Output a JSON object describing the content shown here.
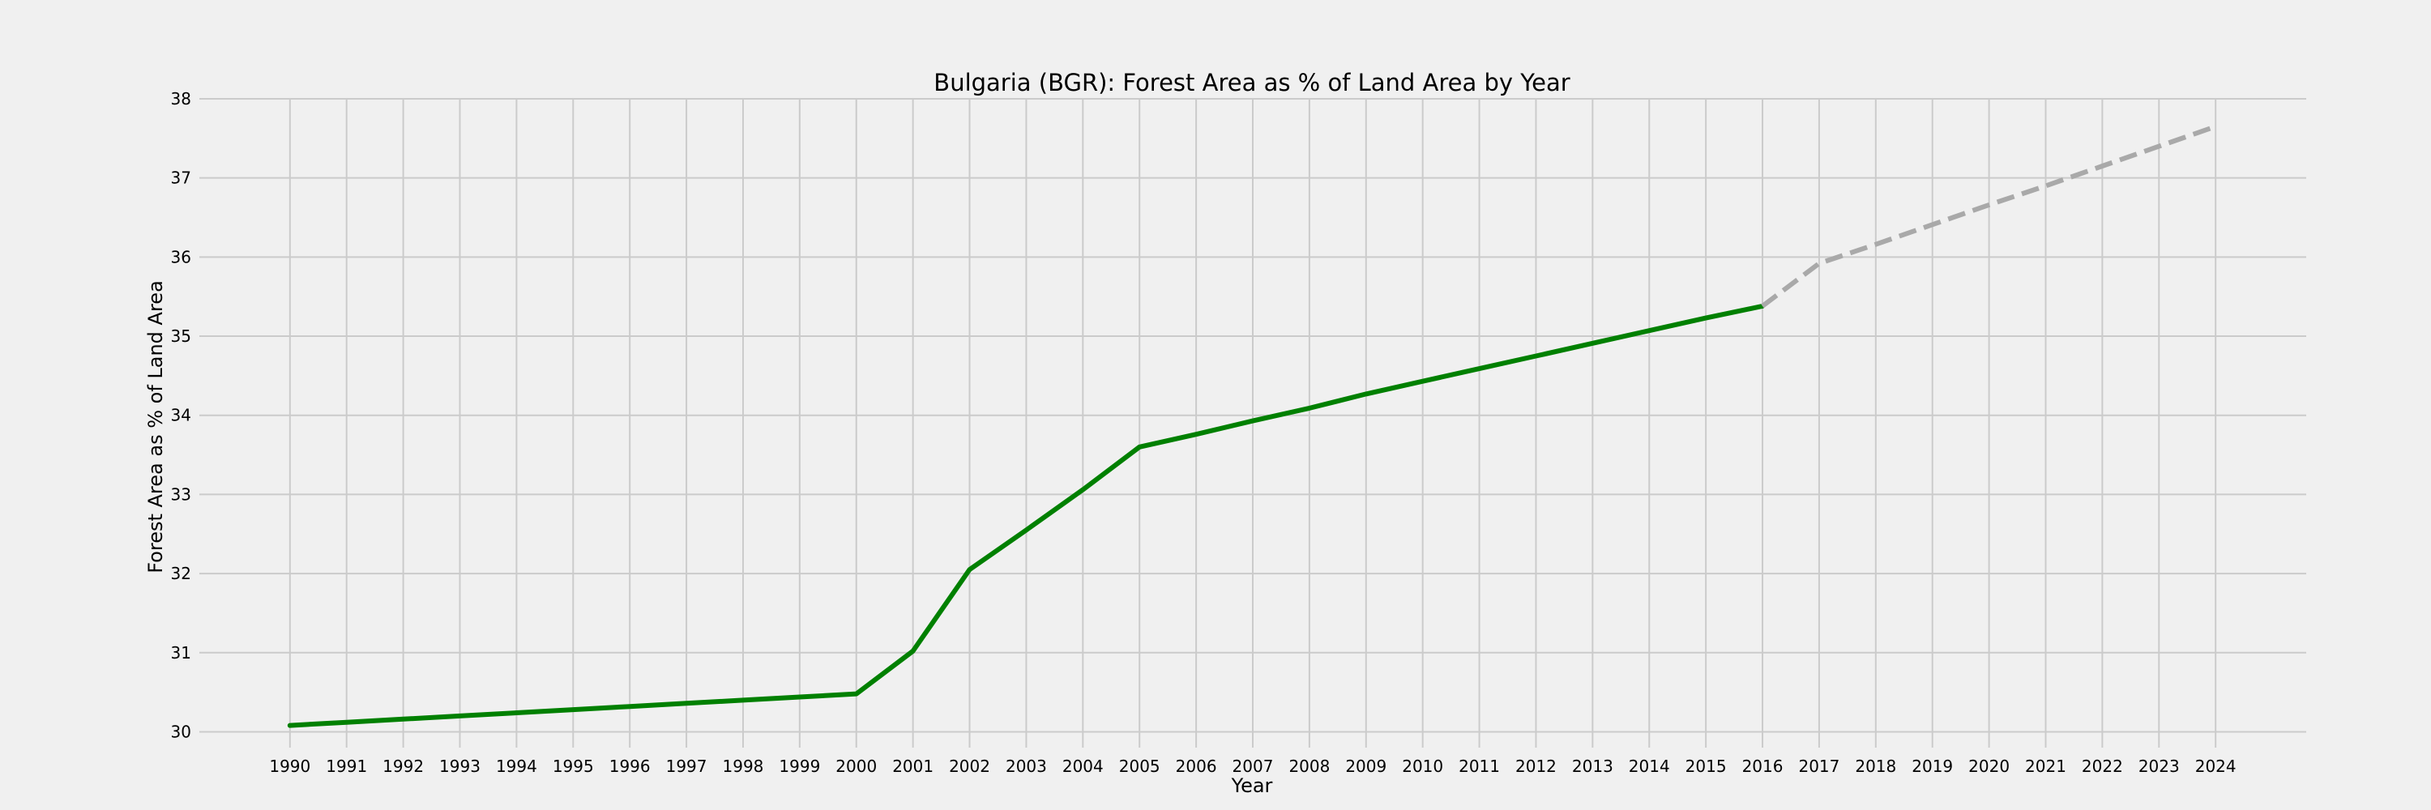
{
  "chart_data": {
    "type": "line",
    "title": "Bulgaria (BGR): Forest Area as % of Land Area by Year",
    "xlabel": "Year",
    "ylabel": "Forest Area as % of Land Area",
    "xlim": [
      1988.4,
      2025.6
    ],
    "ylim": [
      29.8,
      38
    ],
    "x_ticks": [
      1990,
      1991,
      1992,
      1993,
      1994,
      1995,
      1996,
      1997,
      1998,
      1999,
      2000,
      2001,
      2002,
      2003,
      2004,
      2005,
      2006,
      2007,
      2008,
      2009,
      2010,
      2011,
      2012,
      2013,
      2014,
      2015,
      2016,
      2017,
      2018,
      2019,
      2020,
      2021,
      2022,
      2023,
      2024
    ],
    "y_ticks": [
      30,
      31,
      32,
      33,
      34,
      35,
      36,
      37,
      38
    ],
    "grid": true,
    "series": [
      {
        "style": "solid",
        "color": "#008000",
        "x": [
          1990,
          1991,
          1992,
          1993,
          1994,
          1995,
          1996,
          1997,
          1998,
          1999,
          2000,
          2001,
          2002,
          2003,
          2004,
          2005,
          2006,
          2007,
          2008,
          2009,
          2010,
          2011,
          2012,
          2013,
          2014,
          2015,
          2016
        ],
        "y": [
          30.08,
          30.12,
          30.16,
          30.2,
          30.24,
          30.28,
          30.32,
          30.36,
          30.4,
          30.44,
          30.48,
          31.02,
          32.05,
          32.55,
          33.06,
          33.6,
          33.76,
          33.93,
          34.09,
          34.27,
          34.43,
          34.59,
          34.75,
          34.91,
          35.07,
          35.23,
          35.38
        ]
      },
      {
        "style": "dashed",
        "color": "#a9a9a9",
        "x": [
          2016,
          2017,
          2018,
          2019,
          2020,
          2021,
          2022,
          2023,
          2024
        ],
        "y": [
          35.38,
          35.92,
          36.16,
          36.41,
          36.66,
          36.9,
          37.15,
          37.4,
          37.65
        ]
      }
    ]
  }
}
